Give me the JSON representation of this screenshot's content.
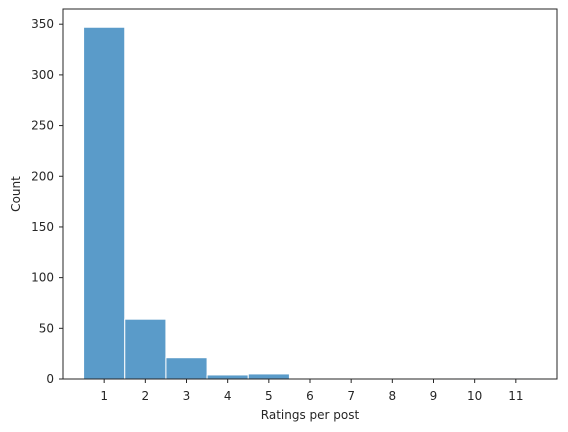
{
  "chart_data": {
    "type": "bar",
    "title": "",
    "xlabel": "Ratings per post",
    "ylabel": "Count",
    "x_ticks": [
      "1",
      "2",
      "3",
      "4",
      "5",
      "6",
      "7",
      "8",
      "9",
      "10",
      "11"
    ],
    "y_ticks": [
      "0",
      "50",
      "100",
      "150",
      "200",
      "250",
      "300",
      "350"
    ],
    "xlim": [
      0.0,
      12.0
    ],
    "ylim": [
      0,
      365
    ],
    "bin_width": 1,
    "bins": [
      {
        "x": 1,
        "value": 347
      },
      {
        "x": 2,
        "value": 59
      },
      {
        "x": 3,
        "value": 21
      },
      {
        "x": 4,
        "value": 4
      },
      {
        "x": 5,
        "value": 5
      },
      {
        "x": 6,
        "value": 0
      },
      {
        "x": 7,
        "value": 0
      },
      {
        "x": 8,
        "value": 0
      },
      {
        "x": 9,
        "value": 0
      },
      {
        "x": 10,
        "value": 1
      },
      {
        "x": 11,
        "value": 1
      }
    ],
    "bar_color": "#5a9bc9",
    "bar_edge_color": "#ffffff",
    "grid": false,
    "legend": "none"
  }
}
